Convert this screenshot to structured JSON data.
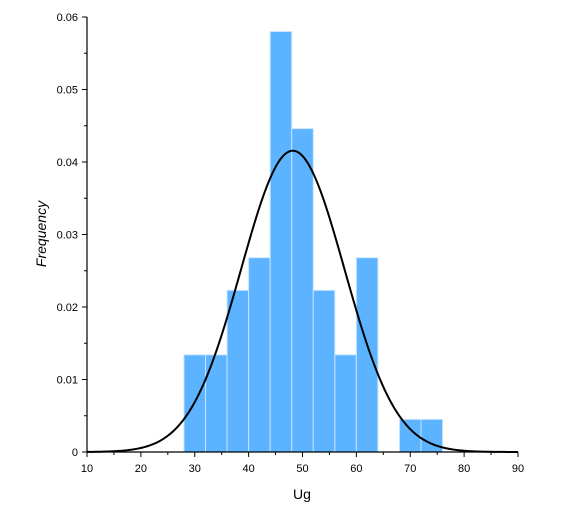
{
  "chart_data": {
    "type": "bar",
    "title": "",
    "xlabel": "Ug",
    "ylabel": "Frequency",
    "xlim": [
      10,
      90
    ],
    "ylim": [
      0,
      0.06
    ],
    "x_ticks": [
      10,
      20,
      30,
      40,
      50,
      60,
      70,
      80,
      90
    ],
    "y_ticks": [
      0,
      0.01,
      0.02,
      0.03,
      0.04,
      0.05,
      0.06
    ],
    "x_tick_labels": [
      "10",
      "20",
      "30",
      "40",
      "50",
      "60",
      "70",
      "80",
      "90"
    ],
    "y_tick_labels": [
      "0",
      "0.01",
      "0.02",
      "0.03",
      "0.04",
      "0.05",
      "0.06"
    ],
    "grid": false,
    "bin_width": 4,
    "bins": [
      {
        "start": 28,
        "end": 32,
        "value": 0.0134
      },
      {
        "start": 32,
        "end": 36,
        "value": 0.0134
      },
      {
        "start": 36,
        "end": 40,
        "value": 0.0223
      },
      {
        "start": 40,
        "end": 44,
        "value": 0.0268
      },
      {
        "start": 44,
        "end": 48,
        "value": 0.058
      },
      {
        "start": 48,
        "end": 52,
        "value": 0.0446
      },
      {
        "start": 52,
        "end": 56,
        "value": 0.0223
      },
      {
        "start": 56,
        "end": 60,
        "value": 0.0134
      },
      {
        "start": 60,
        "end": 64,
        "value": 0.0268
      },
      {
        "start": 64,
        "end": 68,
        "value": 0
      },
      {
        "start": 68,
        "end": 72,
        "value": 0.0045
      },
      {
        "start": 72,
        "end": 76,
        "value": 0.0045
      }
    ],
    "fit_curve": {
      "type": "normal",
      "mean": 48.2,
      "sd": 9.6
    },
    "colors": {
      "bar": "#5cb3ff",
      "bar_edge": "#c8e4ff",
      "curve": "#000000",
      "axis": "#000000"
    }
  }
}
